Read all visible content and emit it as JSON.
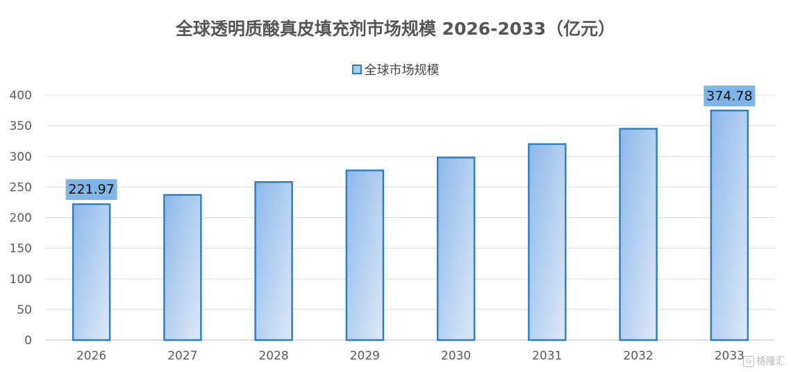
{
  "chart_data": {
    "type": "bar",
    "title": "全球透明质酸真皮填充剂市场规模 2026-2033（亿元）",
    "categories": [
      "2026",
      "2027",
      "2028",
      "2029",
      "2030",
      "2031",
      "2032",
      "2033"
    ],
    "series": [
      {
        "name": "全球市场规模",
        "values": [
          221.97,
          237,
          258,
          277,
          298,
          320,
          345,
          374.78
        ]
      }
    ],
    "data_labels": [
      {
        "category": "2026",
        "text": "221.97"
      },
      {
        "category": "2033",
        "text": "374.78"
      }
    ],
    "ylim": [
      0,
      400
    ],
    "yticks": [
      0,
      50,
      100,
      150,
      200,
      250,
      300,
      350,
      400
    ],
    "grid": true,
    "legend_position": "top",
    "colors": {
      "bar_fill_dark": "#8db8ea",
      "bar_fill_light": "#dde9f8",
      "bar_border": "#2e7fc1",
      "label_bg": "#7fb5e6",
      "grid": "#d9d9d9",
      "axis_text": "#595959"
    }
  },
  "watermark": {
    "badge": "G",
    "text": "格隆汇"
  }
}
